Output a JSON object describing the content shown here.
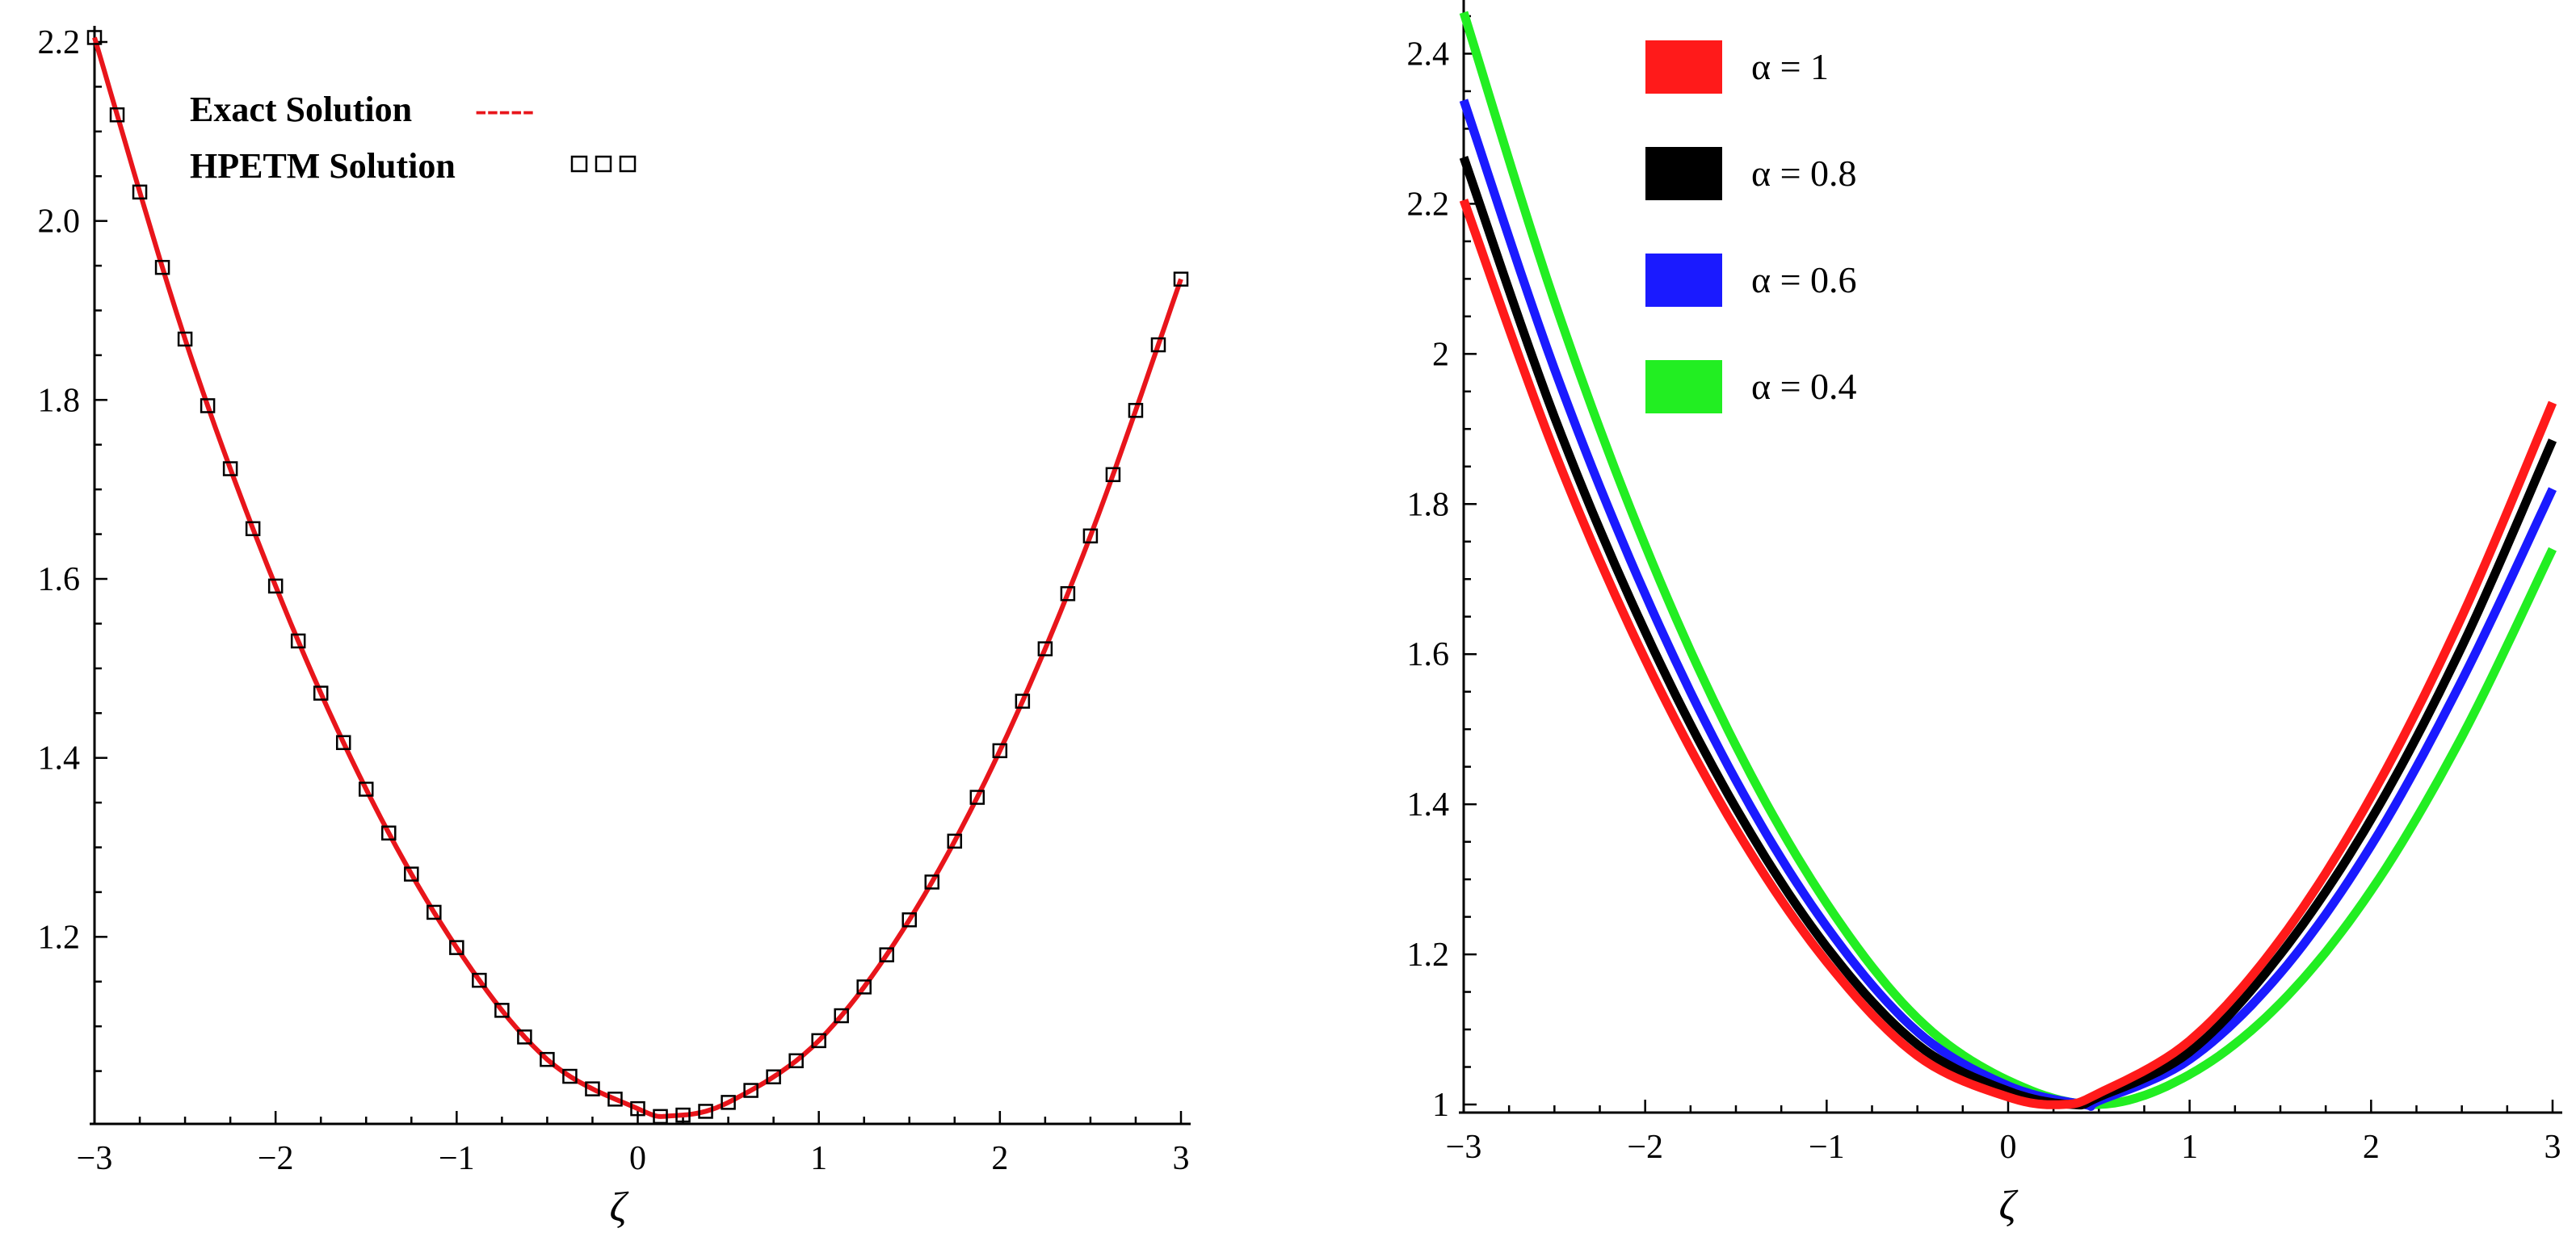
{
  "chart_data": [
    {
      "type": "line",
      "xlabel": "ζ",
      "ylabel": "",
      "xlim": [
        -3,
        3
      ],
      "ylim": [
        1.0,
        2.2
      ],
      "x_ticks": [
        -3,
        -2,
        -1,
        0,
        1,
        2,
        3
      ],
      "x_tick_labels": [
        "−3",
        "−2",
        "−1",
        "0",
        "1",
        "2",
        "3"
      ],
      "y_ticks": [
        1.2,
        1.4,
        1.6,
        1.8,
        2.0,
        2.2
      ],
      "y_tick_labels": [
        "1.2",
        "1.4",
        "1.6",
        "1.8",
        "2.0",
        "2.2"
      ],
      "grid": false,
      "legend_position": "top-left",
      "series": [
        {
          "name": "Exact Solution",
          "style": "dashed line",
          "color": "#e8151b",
          "x": [
            -3.0,
            -2.5,
            -2.0,
            -1.5,
            -1.0,
            -0.5,
            0.0,
            0.1875,
            0.5,
            1.0,
            1.5,
            2.0,
            2.5,
            3.0
          ],
          "values": [
            2.205,
            1.868,
            1.592,
            1.365,
            1.188,
            1.063,
            1.008,
            1.0,
            1.015,
            1.084,
            1.219,
            1.408,
            1.648,
            1.935
          ]
        },
        {
          "name": "HPETM Solution",
          "style": "square markers",
          "color": "#000000",
          "x": [
            -3.0,
            -2.5,
            -2.0,
            -1.5,
            -1.0,
            -0.5,
            0.0,
            0.1875,
            0.5,
            1.0,
            1.5,
            2.0,
            2.5,
            3.0
          ],
          "values": [
            2.205,
            1.868,
            1.592,
            1.365,
            1.188,
            1.063,
            1.008,
            1.0,
            1.015,
            1.084,
            1.219,
            1.408,
            1.648,
            1.935
          ]
        }
      ],
      "legend_labels": [
        "Exact Solution",
        "HPETM Solution"
      ],
      "legend_symbols": [
        "-----",
        "□□□"
      ]
    },
    {
      "type": "line",
      "xlabel": "ζ",
      "ylabel": "",
      "xlim": [
        -3,
        3
      ],
      "ylim": [
        1.0,
        2.45
      ],
      "x_ticks": [
        -3,
        -2,
        -1,
        0,
        1,
        2,
        3
      ],
      "x_tick_labels": [
        "−3",
        "−2",
        "−1",
        "0",
        "1",
        "2",
        "3"
      ],
      "y_ticks": [
        1,
        1.2,
        1.4,
        1.6,
        1.8,
        2,
        2.2,
        2.4
      ],
      "y_tick_labels": [
        "1",
        "1.2",
        "1.4",
        "1.6",
        "1.8",
        "2",
        "2.2",
        "2.4"
      ],
      "grid": false,
      "legend_position": "top-right",
      "series": [
        {
          "name": "α = 1",
          "color": "#ff1a1a",
          "x": [
            -3.0,
            -2.5,
            -2.0,
            -1.5,
            -1.0,
            -0.5,
            0.0,
            0.3,
            0.5,
            1.0,
            1.5,
            2.0,
            2.5,
            3.0
          ],
          "values": [
            2.205,
            1.87,
            1.593,
            1.367,
            1.19,
            1.065,
            1.01,
            1.0,
            1.015,
            1.085,
            1.22,
            1.41,
            1.65,
            1.935
          ]
        },
        {
          "name": "α = 0.8",
          "color": "#000000",
          "x": [
            -3.0,
            -2.5,
            -2.0,
            -1.5,
            -1.0,
            -0.5,
            0.0,
            0.35,
            0.5,
            1.0,
            1.5,
            2.0,
            2.5,
            3.0
          ],
          "values": [
            2.262,
            1.916,
            1.63,
            1.395,
            1.21,
            1.08,
            1.018,
            1.0,
            1.01,
            1.07,
            1.2,
            1.38,
            1.61,
            1.885
          ]
        },
        {
          "name": "α = 0.6",
          "color": "#1a1aff",
          "x": [
            -3.0,
            -2.5,
            -2.0,
            -1.5,
            -1.0,
            -0.5,
            0.0,
            0.42,
            0.5,
            1.0,
            1.5,
            2.0,
            2.5,
            3.0
          ],
          "values": [
            2.338,
            1.98,
            1.68,
            1.432,
            1.237,
            1.097,
            1.025,
            1.0,
            1.005,
            1.06,
            1.175,
            1.345,
            1.565,
            1.82
          ]
        },
        {
          "name": "α = 0.4",
          "color": "#22ee22",
          "x": [
            -3.0,
            -2.5,
            -2.0,
            -1.5,
            -1.0,
            -0.5,
            0.0,
            0.5,
            1.0,
            1.5,
            2.0,
            2.5,
            3.0
          ],
          "values": [
            2.455,
            2.07,
            1.745,
            1.478,
            1.268,
            1.115,
            1.032,
            1.0,
            1.04,
            1.135,
            1.285,
            1.49,
            1.74
          ]
        }
      ],
      "legend_labels": [
        "α = 1",
        "α = 0.8",
        "α = 0.6",
        " α = 0.4"
      ]
    }
  ]
}
